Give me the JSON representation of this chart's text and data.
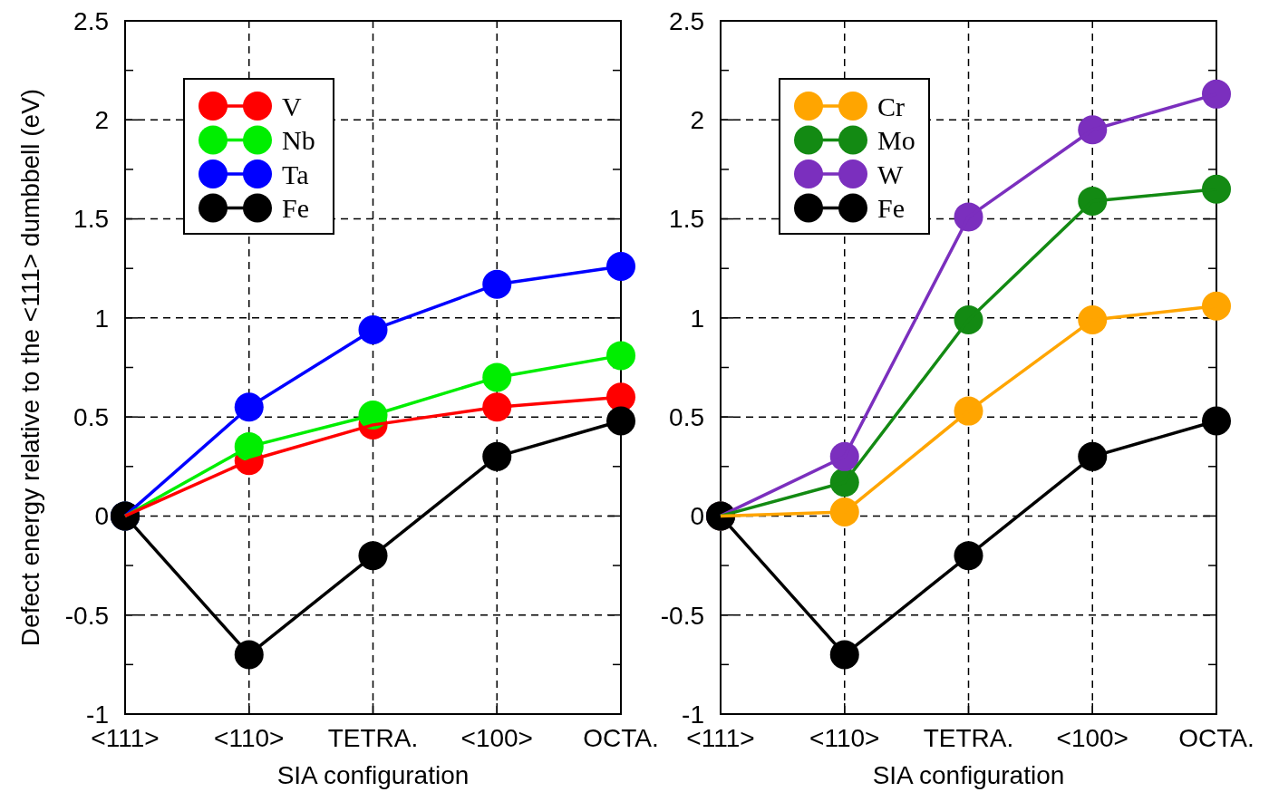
{
  "chart_data": [
    {
      "type": "line",
      "ylabel": "Defect energy relative to the <111> dumbbell (eV)",
      "xlabel": "SIA configuration",
      "categories": [
        "<111>",
        "<110>",
        "TETRA.",
        "<100>",
        "OCTA."
      ],
      "ylim": [
        -1,
        2.5
      ],
      "yticks": [
        -1,
        {
          "value": -0.75,
          "label": null
        },
        {
          "value": -0.5,
          "label": "-0.5"
        },
        {
          "value": -0.25,
          "label": null
        },
        0,
        {
          "value": 0.25,
          "label": null
        },
        0.5,
        {
          "value": 0.75,
          "label": null
        },
        1,
        {
          "value": 1.25,
          "label": null
        },
        1.5,
        {
          "value": 1.75,
          "label": null
        },
        2,
        {
          "value": 2.25,
          "label": null
        },
        2.5
      ],
      "grid": true,
      "legend": "top left",
      "marker": "circle",
      "line_style": "solid",
      "series": [
        {
          "name": "V",
          "color": "#ff0000",
          "values": [
            0,
            0.28,
            0.46,
            0.55,
            0.6
          ]
        },
        {
          "name": "Nb",
          "color": "#00ee00",
          "values": [
            0,
            0.35,
            0.51,
            0.7,
            0.81
          ]
        },
        {
          "name": "Ta",
          "color": "#0000ff",
          "values": [
            0,
            0.55,
            0.94,
            1.17,
            1.26
          ]
        },
        {
          "name": "Fe",
          "color": "#000000",
          "values": [
            0,
            -0.7,
            -0.2,
            0.3,
            0.48
          ]
        }
      ]
    },
    {
      "type": "line",
      "xlabel": "SIA configuration",
      "categories": [
        "<111>",
        "<110>",
        "TETRA.",
        "<100>",
        "OCTA."
      ],
      "ylim": [
        -1,
        2.5
      ],
      "yticks": [
        -1,
        {
          "value": -0.75,
          "label": null
        },
        {
          "value": -0.5,
          "label": "-0.5"
        },
        {
          "value": -0.25,
          "label": null
        },
        0,
        {
          "value": 0.25,
          "label": null
        },
        0.5,
        {
          "value": 0.75,
          "label": null
        },
        1,
        {
          "value": 1.25,
          "label": null
        },
        1.5,
        {
          "value": 1.75,
          "label": null
        },
        2,
        {
          "value": 2.25,
          "label": null
        },
        2.5
      ],
      "grid": true,
      "legend": "top left",
      "marker": "circle",
      "line_style": "solid",
      "series": [
        {
          "name": "Cr",
          "color": "#ffa500",
          "values": [
            0,
            0.02,
            0.53,
            0.99,
            1.06
          ]
        },
        {
          "name": "Mo",
          "color": "#138a13",
          "values": [
            0,
            0.17,
            0.99,
            1.59,
            1.65
          ]
        },
        {
          "name": "W",
          "color": "#7b2fbe",
          "values": [
            0,
            0.3,
            1.51,
            1.95,
            2.13
          ]
        },
        {
          "name": "Fe",
          "color": "#000000",
          "values": [
            0,
            -0.7,
            -0.2,
            0.3,
            0.48
          ]
        }
      ]
    }
  ]
}
